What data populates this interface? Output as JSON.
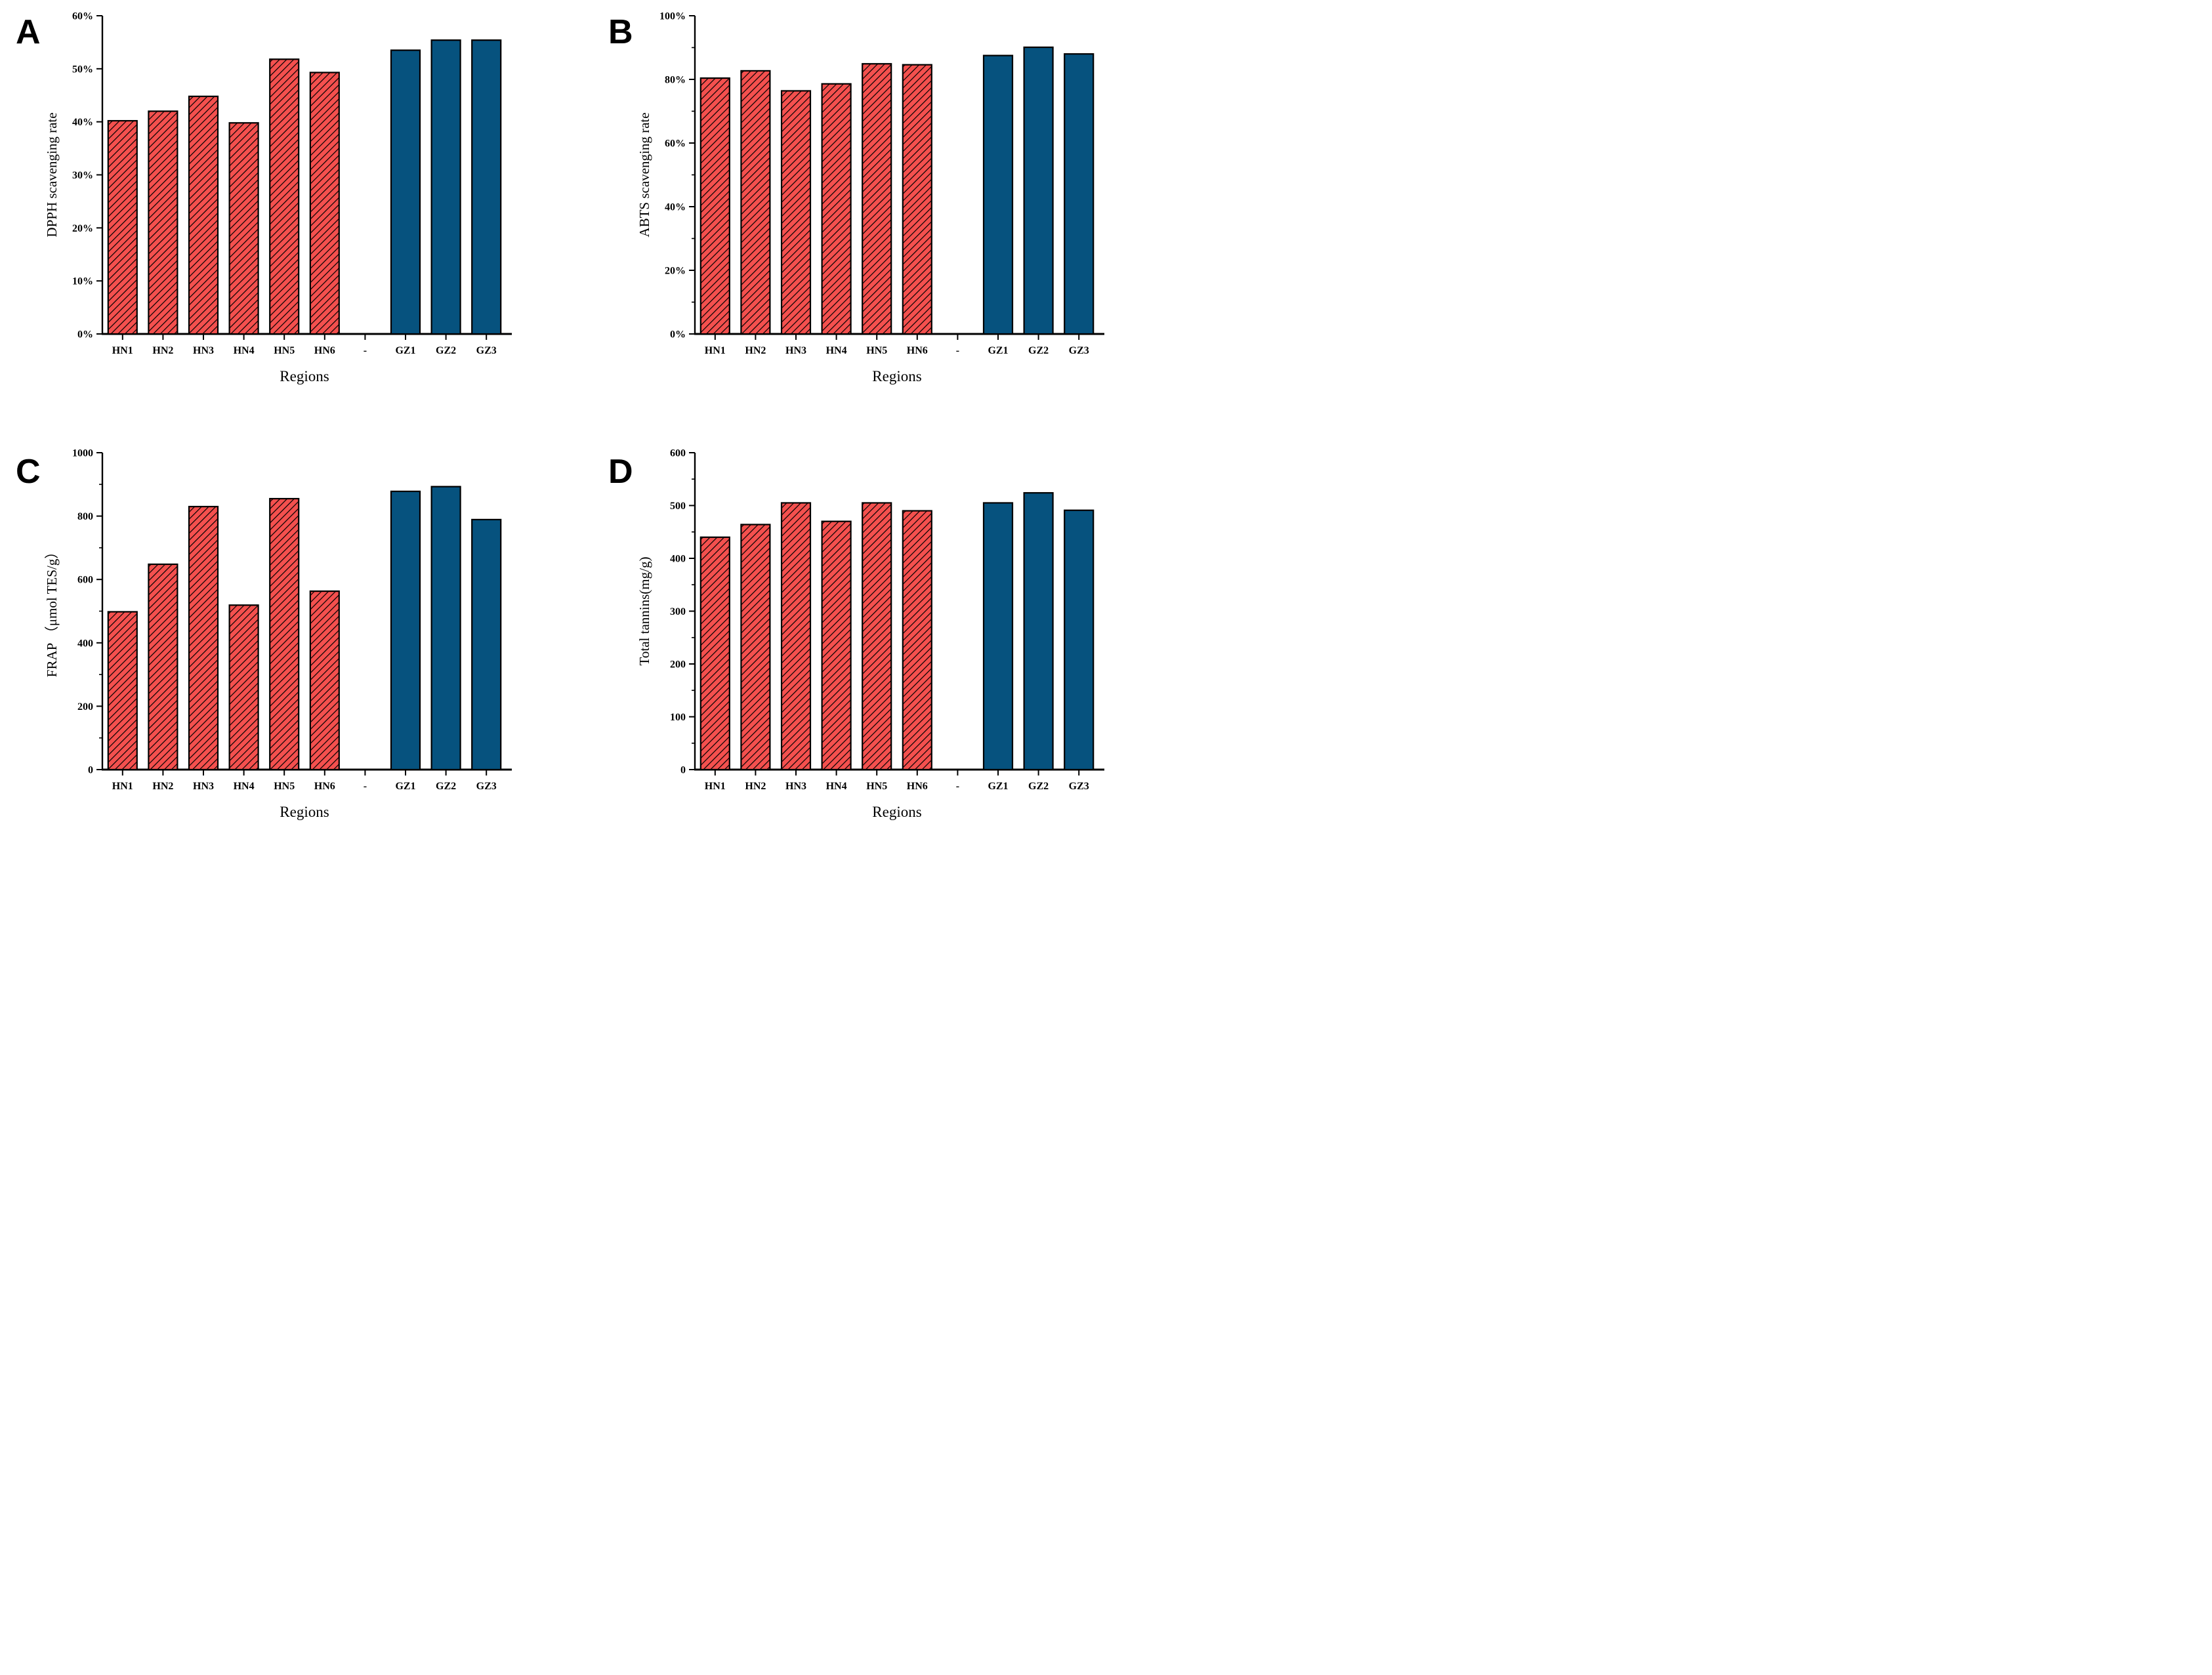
{
  "figure": {
    "background": "#ffffff",
    "description_categories_note": "Six HN samples (red hatched bars), one empty slot labeled -, three GZ samples (blue solid bars)"
  },
  "colors": {
    "hn_bar_fill": "#f4504e",
    "gz_bar_fill": "#06527e",
    "bar_edge": "#000000",
    "axis": "#000000",
    "text": "#000000"
  },
  "chart_data": [
    {
      "type": "bar",
      "panel_letter": "A",
      "title": "",
      "ylabel": "DPPH scavenging rate",
      "xlabel": "Regions",
      "categories": [
        "HN1",
        "HN2",
        "HN3",
        "HN4",
        "HN5",
        "HN6",
        "-",
        "GZ1",
        "GZ2",
        "GZ3"
      ],
      "values": [
        40.2,
        42.0,
        44.8,
        39.8,
        51.8,
        49.3,
        null,
        53.5,
        55.4,
        55.4
      ],
      "ylim": [
        0,
        60
      ],
      "y_major_step": 10,
      "y_minor_step": null,
      "tick_format": "percent",
      "grid": false,
      "legend": "none",
      "series_groups": [
        {
          "name": "HN samples",
          "style": "red-hatched",
          "indices": [
            0,
            1,
            2,
            3,
            4,
            5
          ]
        },
        {
          "name": "GZ samples",
          "style": "blue-solid",
          "indices": [
            7,
            8,
            9
          ]
        }
      ]
    },
    {
      "type": "bar",
      "panel_letter": "B",
      "title": "",
      "ylabel": "ABTS scavenging rate",
      "xlabel": "Regions",
      "categories": [
        "HN1",
        "HN2",
        "HN3",
        "HN4",
        "HN5",
        "HN6",
        "-",
        "GZ1",
        "GZ2",
        "GZ3"
      ],
      "values": [
        80.4,
        82.7,
        76.4,
        78.6,
        84.9,
        84.6,
        null,
        87.5,
        90.1,
        88.0
      ],
      "ylim": [
        0,
        100
      ],
      "y_major_step": 20,
      "y_minor_step": 10,
      "tick_format": "percent",
      "grid": false,
      "legend": "none",
      "series_groups": [
        {
          "name": "HN samples",
          "style": "red-hatched",
          "indices": [
            0,
            1,
            2,
            3,
            4,
            5
          ]
        },
        {
          "name": "GZ samples",
          "style": "blue-solid",
          "indices": [
            7,
            8,
            9
          ]
        }
      ]
    },
    {
      "type": "bar",
      "panel_letter": "C",
      "title": "",
      "ylabel": "FRAP （μmol TES/g）",
      "xlabel": "Regions",
      "categories": [
        "HN1",
        "HN2",
        "HN3",
        "HN4",
        "HN5",
        "HN6",
        "-",
        "GZ1",
        "GZ2",
        "GZ3"
      ],
      "values": [
        498,
        648,
        830,
        519,
        855,
        563,
        null,
        878,
        893,
        789
      ],
      "ylim": [
        0,
        1000
      ],
      "y_major_step": 200,
      "y_minor_step": 100,
      "tick_format": "plain",
      "grid": false,
      "legend": "none",
      "series_groups": [
        {
          "name": "HN samples",
          "style": "red-hatched",
          "indices": [
            0,
            1,
            2,
            3,
            4,
            5
          ]
        },
        {
          "name": "GZ samples",
          "style": "blue-solid",
          "indices": [
            7,
            8,
            9
          ]
        }
      ]
    },
    {
      "type": "bar",
      "panel_letter": "D",
      "title": "",
      "ylabel": "Total tannins(mg/g)",
      "xlabel": "Regions",
      "categories": [
        "HN1",
        "HN2",
        "HN3",
        "HN4",
        "HN5",
        "HN6",
        "-",
        "GZ1",
        "GZ2",
        "GZ3"
      ],
      "values": [
        440,
        464,
        505,
        470,
        505,
        490,
        null,
        505,
        524,
        491
      ],
      "ylim": [
        0,
        600
      ],
      "y_major_step": 100,
      "y_minor_step": 50,
      "tick_format": "plain",
      "grid": false,
      "legend": "none",
      "series_groups": [
        {
          "name": "HN samples",
          "style": "red-hatched",
          "indices": [
            0,
            1,
            2,
            3,
            4,
            5
          ]
        },
        {
          "name": "GZ samples",
          "style": "blue-solid",
          "indices": [
            7,
            8,
            9
          ]
        }
      ]
    }
  ]
}
